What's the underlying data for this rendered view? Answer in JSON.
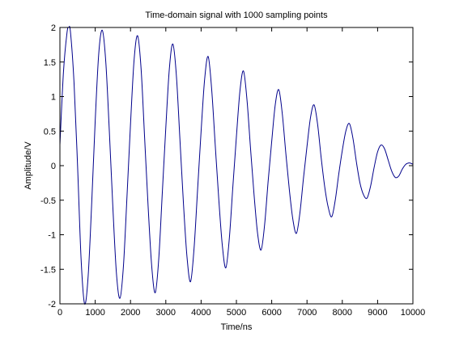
{
  "chart_data": {
    "type": "line",
    "title": "Time-domain signal with 1000 sampling points",
    "xlabel": "Time/ns",
    "ylabel": "Amplitude/V",
    "xlim": [
      0,
      10000
    ],
    "ylim": [
      -2,
      2
    ],
    "x_ticks": [
      "0",
      "1000",
      "2000",
      "3000",
      "4000",
      "5000",
      "6000",
      "7000",
      "8000",
      "9000",
      "10000"
    ],
    "y_ticks": [
      "2",
      "1.5",
      "1",
      "0.5",
      "0",
      "-0.5",
      "-1",
      "-1.5",
      "-2"
    ],
    "grid": false,
    "line_color": "#00008b",
    "series": [
      {
        "x": [
          0,
          100,
          200,
          250,
          300,
          400,
          500,
          600,
          700,
          800,
          900,
          1000,
          1100,
          1200,
          1300,
          1400,
          1500,
          1600,
          1700,
          1800,
          1900,
          2000,
          2100,
          2200,
          2300,
          2400,
          2500,
          2600,
          2700,
          2800,
          2900,
          3000,
          3100,
          3200,
          3300,
          3400,
          3500,
          3600,
          3700,
          3800,
          3900,
          4000,
          4100,
          4200,
          4300,
          4400,
          4500,
          4600,
          4700,
          4800,
          4900,
          5000,
          5100,
          5200,
          5300,
          5400,
          5500,
          5600,
          5700,
          5800,
          5900,
          6000,
          6100,
          6200,
          6300,
          6400,
          6500,
          6600,
          6700,
          6800,
          6900,
          7000,
          7100,
          7200,
          7300,
          7400,
          7500,
          7600,
          7700,
          7800,
          7900,
          8000,
          8100,
          8200,
          8300,
          8400,
          8500,
          8600,
          8700,
          8800,
          8900,
          9000,
          9100,
          9200,
          9300,
          9400,
          9500,
          9600,
          9700,
          9800,
          9900,
          10000
        ],
        "y": [
          0.3,
          1.35,
          1.92,
          2.0,
          1.93,
          1.2,
          0.0,
          -1.35,
          -2.0,
          -1.6,
          -0.55,
          0.65,
          1.62,
          1.96,
          1.5,
          0.5,
          -0.6,
          -1.55,
          -1.92,
          -1.45,
          -0.45,
          0.6,
          1.52,
          1.88,
          1.4,
          0.4,
          -0.6,
          -1.45,
          -1.84,
          -1.35,
          -0.4,
          0.55,
          1.4,
          1.76,
          1.3,
          0.38,
          -0.55,
          -1.32,
          -1.68,
          -1.2,
          -0.35,
          0.5,
          1.25,
          1.58,
          1.1,
          0.3,
          -0.48,
          -1.15,
          -1.48,
          -1.05,
          -0.3,
          0.42,
          1.08,
          1.37,
          0.95,
          0.25,
          -0.42,
          -0.98,
          -1.22,
          -0.85,
          -0.22,
          0.35,
          0.88,
          1.1,
          0.75,
          0.18,
          -0.35,
          -0.78,
          -0.98,
          -0.68,
          -0.18,
          0.28,
          0.7,
          0.88,
          0.6,
          0.12,
          -0.3,
          -0.6,
          -0.74,
          -0.5,
          -0.12,
          0.22,
          0.5,
          0.61,
          0.4,
          0.05,
          -0.25,
          -0.42,
          -0.47,
          -0.3,
          -0.03,
          0.2,
          0.3,
          0.24,
          0.08,
          -0.08,
          -0.17,
          -0.15,
          -0.05,
          0.02,
          0.04,
          0.02
        ]
      }
    ]
  }
}
